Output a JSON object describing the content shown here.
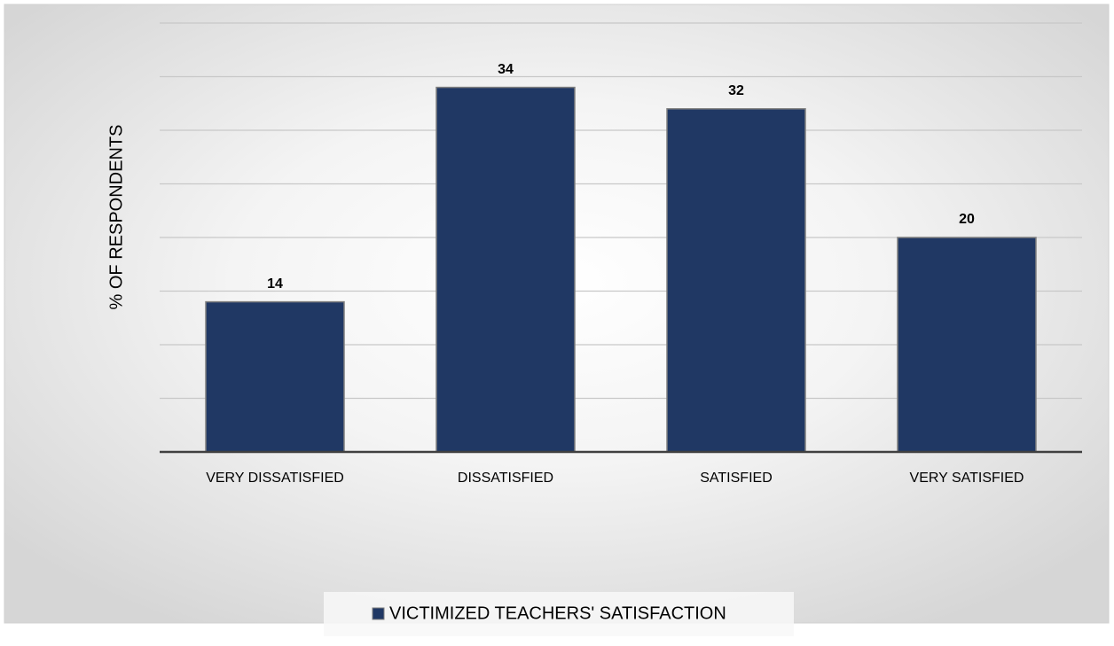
{
  "chart_data": {
    "type": "bar",
    "y_label": "% OF RESPONDENTS",
    "categories": [
      "VERY DISSATISFIED",
      "DISSATISFIED",
      "SATISFIED",
      "VERY SATISFIED"
    ],
    "series": [
      {
        "name": "VICTIMIZED TEACHERS' SATISFACTION",
        "color": "#203864",
        "values": [
          14,
          34,
          32,
          20
        ]
      }
    ],
    "ylim": [
      0,
      40
    ],
    "yticks": [
      0,
      5,
      10,
      15,
      20,
      25,
      30,
      35,
      40
    ],
    "grid": true,
    "legend": "bottom"
  }
}
